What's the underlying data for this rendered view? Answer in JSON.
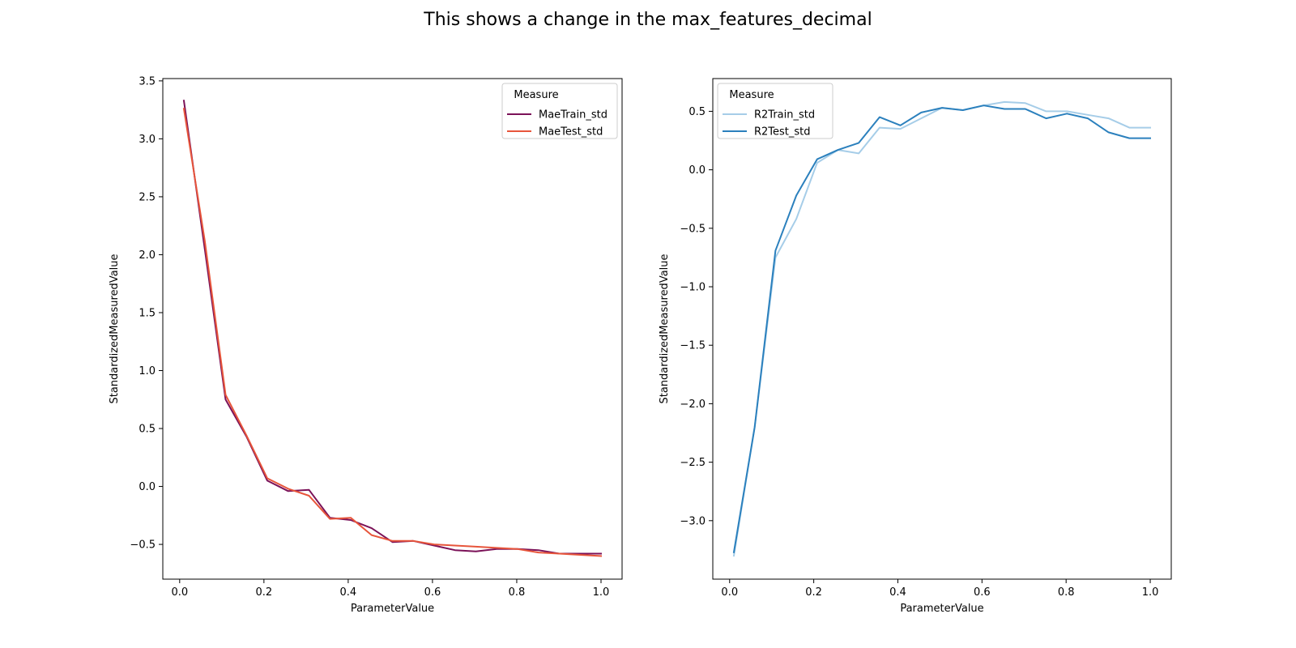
{
  "title": "This shows a change in the max_features_decimal",
  "chart_data": [
    {
      "type": "line",
      "xlabel": "ParameterValue",
      "ylabel": "StandardizedMeasuredValue",
      "xlim": [
        -0.04,
        1.05
      ],
      "ylim": [
        -0.8,
        3.52
      ],
      "xticks": [
        0.0,
        0.2,
        0.4,
        0.6,
        0.8,
        1.0
      ],
      "xtick_labels": [
        "0.0",
        "0.2",
        "0.4",
        "0.6",
        "0.8",
        "1.0"
      ],
      "yticks": [
        -0.5,
        0.0,
        0.5,
        1.0,
        1.5,
        2.0,
        2.5,
        3.0,
        3.5
      ],
      "ytick_labels": [
        "−0.5",
        "0.0",
        "0.5",
        "1.0",
        "1.5",
        "2.0",
        "2.5",
        "3.0",
        "3.5"
      ],
      "legend": {
        "title": "Measure",
        "placement": "top-right"
      },
      "x": [
        0.01,
        0.0595,
        0.109,
        0.1585,
        0.208,
        0.2575,
        0.307,
        0.3565,
        0.406,
        0.4555,
        0.505,
        0.5545,
        0.604,
        0.6535,
        0.703,
        0.7525,
        0.802,
        0.8515,
        0.901,
        0.9505,
        1.0
      ],
      "series": [
        {
          "name": "MaeTrain_std",
          "color": "#7b1258",
          "values": [
            3.33,
            2.05,
            0.75,
            0.43,
            0.05,
            -0.04,
            -0.03,
            -0.27,
            -0.29,
            -0.36,
            -0.48,
            -0.47,
            -0.51,
            -0.55,
            -0.56,
            -0.54,
            -0.54,
            -0.55,
            -0.58,
            -0.58,
            -0.58
          ]
        },
        {
          "name": "MaeTest_std",
          "color": "#e7553b",
          "values": [
            3.26,
            2.12,
            0.79,
            0.44,
            0.07,
            -0.02,
            -0.08,
            -0.28,
            -0.27,
            -0.42,
            -0.47,
            -0.47,
            -0.5,
            -0.51,
            -0.52,
            -0.53,
            -0.54,
            -0.57,
            -0.58,
            -0.59,
            -0.6
          ]
        }
      ]
    },
    {
      "type": "line",
      "xlabel": "ParameterValue",
      "ylabel": "StandardizedMeasuredValue",
      "xlim": [
        -0.04,
        1.05
      ],
      "ylim": [
        -3.5,
        0.78
      ],
      "xticks": [
        0.0,
        0.2,
        0.4,
        0.6,
        0.8,
        1.0
      ],
      "xtick_labels": [
        "0.0",
        "0.2",
        "0.4",
        "0.6",
        "0.8",
        "1.0"
      ],
      "yticks": [
        -3.0,
        -2.5,
        -2.0,
        -1.5,
        -1.0,
        -0.5,
        0.0,
        0.5
      ],
      "ytick_labels": [
        "−3.0",
        "−2.5",
        "−2.0",
        "−1.5",
        "−1.0",
        "−0.5",
        "0.0",
        "0.5"
      ],
      "legend": {
        "title": "Measure",
        "placement": "top-left"
      },
      "x": [
        0.01,
        0.0595,
        0.109,
        0.1585,
        0.208,
        0.2575,
        0.307,
        0.3565,
        0.406,
        0.4555,
        0.505,
        0.5545,
        0.604,
        0.6535,
        0.703,
        0.7525,
        0.802,
        0.8515,
        0.901,
        0.9505,
        1.0
      ],
      "series": [
        {
          "name": "R2Train_std",
          "color": "#a6cde8",
          "values": [
            -3.3,
            -2.2,
            -0.75,
            -0.42,
            0.06,
            0.17,
            0.14,
            0.36,
            0.35,
            0.44,
            0.53,
            0.51,
            0.55,
            0.58,
            0.57,
            0.5,
            0.5,
            0.47,
            0.44,
            0.36,
            0.36
          ]
        },
        {
          "name": "R2Test_std",
          "color": "#2b80bd",
          "values": [
            -3.27,
            -2.2,
            -0.69,
            -0.22,
            0.09,
            0.17,
            0.23,
            0.45,
            0.38,
            0.49,
            0.53,
            0.51,
            0.55,
            0.52,
            0.52,
            0.44,
            0.48,
            0.44,
            0.32,
            0.27,
            0.27
          ]
        }
      ]
    }
  ]
}
